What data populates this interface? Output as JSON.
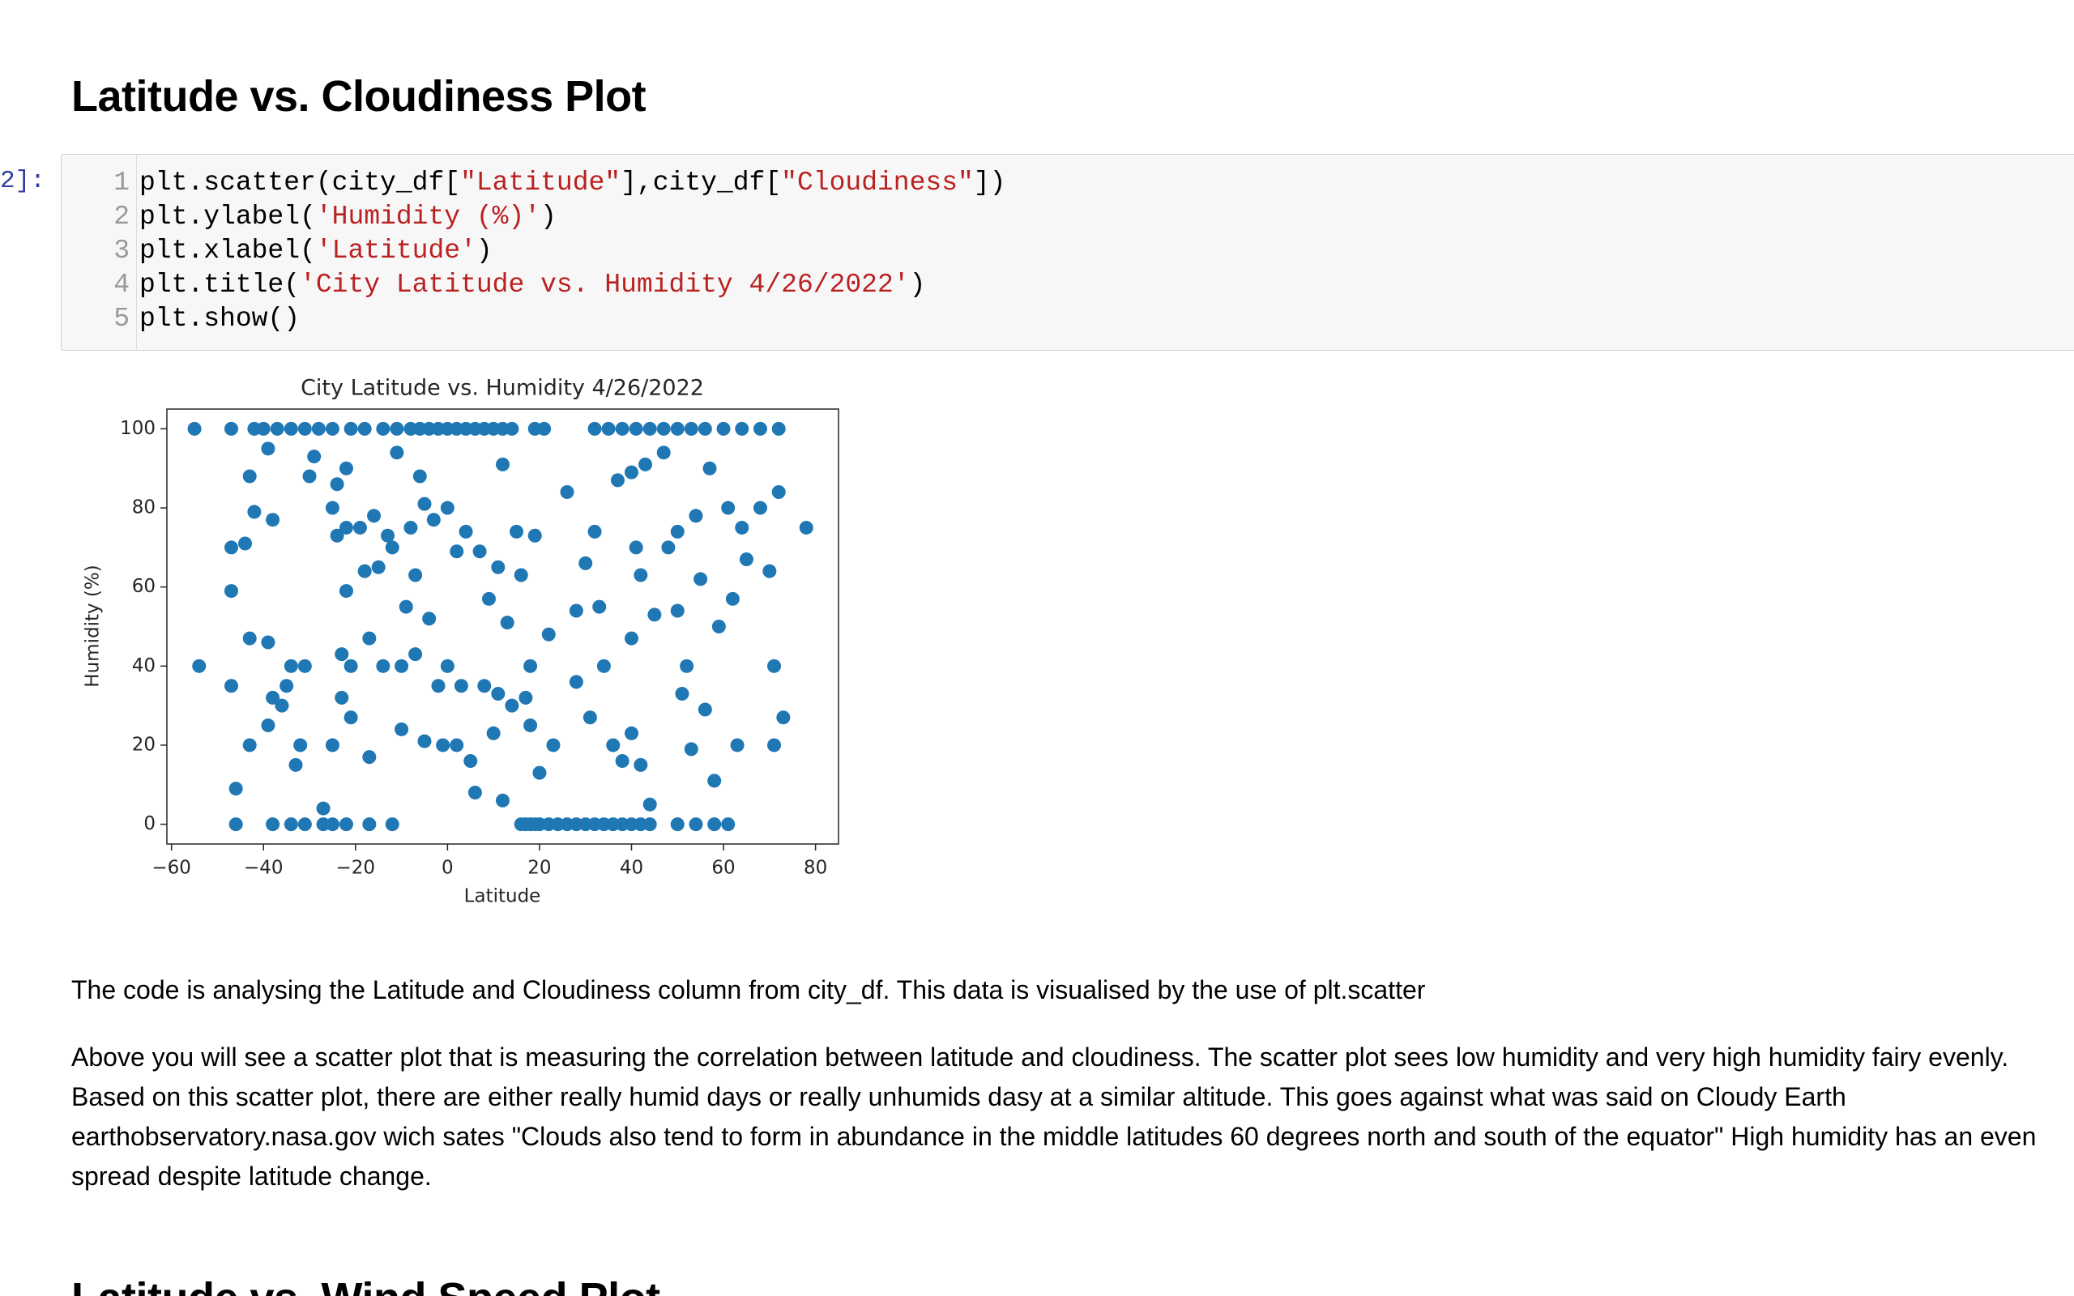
{
  "heading": "Latitude vs. Cloudiness Plot",
  "prompt": "2]:",
  "code": {
    "line_numbers": [
      "1",
      "2",
      "3",
      "4",
      "5"
    ],
    "lines": [
      [
        "plt.scatter(city_df[",
        "\"Latitude\"",
        "],city_df[",
        "\"Cloudiness\"",
        "])"
      ],
      [
        "plt.ylabel(",
        "'Humidity (%)'",
        ")"
      ],
      [
        "plt.xlabel(",
        "'Latitude'",
        ")"
      ],
      [
        "plt.title(",
        "'City Latitude vs. Humidity 4/26/2022'",
        ")"
      ],
      [
        "plt.show()"
      ]
    ]
  },
  "chart_data": {
    "type": "scatter",
    "title": "City Latitude vs. Humidity 4/26/2022",
    "xlabel": "Latitude",
    "ylabel": "Humidity (%)",
    "color": "#1f77b4",
    "xlim": [
      -61,
      85
    ],
    "ylim": [
      -5,
      105
    ],
    "xticks": [
      {
        "value": -60,
        "label": "−60"
      },
      {
        "value": -40,
        "label": "−40"
      },
      {
        "value": -20,
        "label": "−20"
      },
      0,
      20,
      40,
      60,
      80
    ],
    "yticks": [
      0,
      20,
      40,
      60,
      80,
      100
    ],
    "x": [
      -55,
      -47,
      -42,
      -40,
      -37,
      -34,
      -31,
      -28,
      -25,
      -21,
      -18,
      -14,
      -11,
      -8,
      -6,
      -4,
      -2,
      0,
      2,
      4,
      6,
      8,
      10,
      12,
      14,
      19,
      21,
      32,
      35,
      38,
      41,
      44,
      47,
      50,
      53,
      56,
      60,
      64,
      68,
      72,
      -46,
      -38,
      -34,
      -31,
      -27,
      -25,
      -22,
      -17,
      -12,
      16,
      17,
      18,
      19,
      20,
      22,
      24,
      26,
      28,
      30,
      32,
      34,
      36,
      38,
      40,
      42,
      44,
      50,
      54,
      58,
      61,
      -54,
      -47,
      -47,
      -47,
      -46,
      -44,
      -43,
      -43,
      -43,
      -42,
      -39,
      -39,
      -39,
      -38,
      -38,
      -36,
      -35,
      -34,
      -33,
      -32,
      -31,
      -30,
      -29,
      -27,
      -25,
      -25,
      -24,
      -24,
      -23,
      -23,
      -22,
      -22,
      -22,
      -21,
      -21,
      -19,
      -18,
      -17,
      -17,
      -16,
      -15,
      -14,
      -13,
      -12,
      -11,
      -10,
      -10,
      -9,
      -8,
      -7,
      -7,
      -6,
      -5,
      -5,
      -4,
      -3,
      -2,
      -1,
      0,
      0,
      2,
      2,
      3,
      4,
      5,
      6,
      7,
      8,
      9,
      10,
      11,
      11,
      12,
      12,
      13,
      14,
      15,
      16,
      17,
      18,
      18,
      19,
      20,
      22,
      23,
      26,
      28,
      28,
      30,
      31,
      32,
      33,
      34,
      36,
      37,
      38,
      40,
      40,
      40,
      41,
      42,
      42,
      43,
      44,
      45,
      47,
      48,
      50,
      50,
      51,
      52,
      53,
      54,
      55,
      56,
      57,
      58,
      59,
      61,
      62,
      63,
      64,
      65,
      68,
      70,
      71,
      71,
      72,
      73,
      78
    ],
    "y": [
      100,
      100,
      100,
      100,
      100,
      100,
      100,
      100,
      100,
      100,
      100,
      100,
      100,
      100,
      100,
      100,
      100,
      100,
      100,
      100,
      100,
      100,
      100,
      100,
      100,
      100,
      100,
      100,
      100,
      100,
      100,
      100,
      100,
      100,
      100,
      100,
      100,
      100,
      100,
      100,
      0,
      0,
      0,
      0,
      0,
      0,
      0,
      0,
      0,
      0,
      0,
      0,
      0,
      0,
      0,
      0,
      0,
      0,
      0,
      0,
      0,
      0,
      0,
      0,
      0,
      0,
      0,
      0,
      0,
      0,
      40,
      70,
      59,
      35,
      9,
      71,
      88,
      47,
      20,
      79,
      95,
      46,
      25,
      77,
      32,
      30,
      35,
      40,
      15,
      20,
      40,
      88,
      93,
      4,
      80,
      20,
      86,
      73,
      32,
      43,
      90,
      75,
      59,
      40,
      27,
      75,
      64,
      47,
      17,
      78,
      65,
      40,
      73,
      70,
      94,
      40,
      24,
      55,
      75,
      63,
      43,
      88,
      21,
      81,
      52,
      77,
      35,
      20,
      80,
      40,
      20,
      69,
      35,
      74,
      16,
      8,
      69,
      35,
      57,
      23,
      33,
      65,
      6,
      91,
      51,
      30,
      74,
      63,
      32,
      40,
      25,
      73,
      13,
      48,
      20,
      84,
      36,
      54,
      66,
      27,
      74,
      55,
      40,
      20,
      87,
      16,
      47,
      23,
      89,
      70,
      63,
      15,
      91,
      5,
      53,
      94,
      70,
      54,
      74,
      33,
      40,
      19,
      78,
      62,
      29,
      90,
      11,
      50,
      80,
      57,
      20,
      75,
      67,
      80,
      64,
      20,
      40,
      84,
      27,
      75
    ]
  },
  "paragraphs": [
    "The code is analysing the Latitude and Cloudiness column from city_df. This data is visualised by the use of plt.scatter",
    "Above you will see a scatter plot that is measuring the correlation between latitude and cloudiness. The scatter plot sees low humidity and very high humidity fairy evenly. Based on this scatter plot, there are either really humid days or really unhumids dasy at a similar altitude. This goes against what was said on Cloudy Earth earthobservatory.nasa.gov wich sates \"Clouds also tend to form in abundance in the middle latitudes 60 degrees north and south of the equator\" High humidity has an even spread despite latitude change."
  ],
  "next_heading": "Latitude vs. Wind Speed Plot"
}
